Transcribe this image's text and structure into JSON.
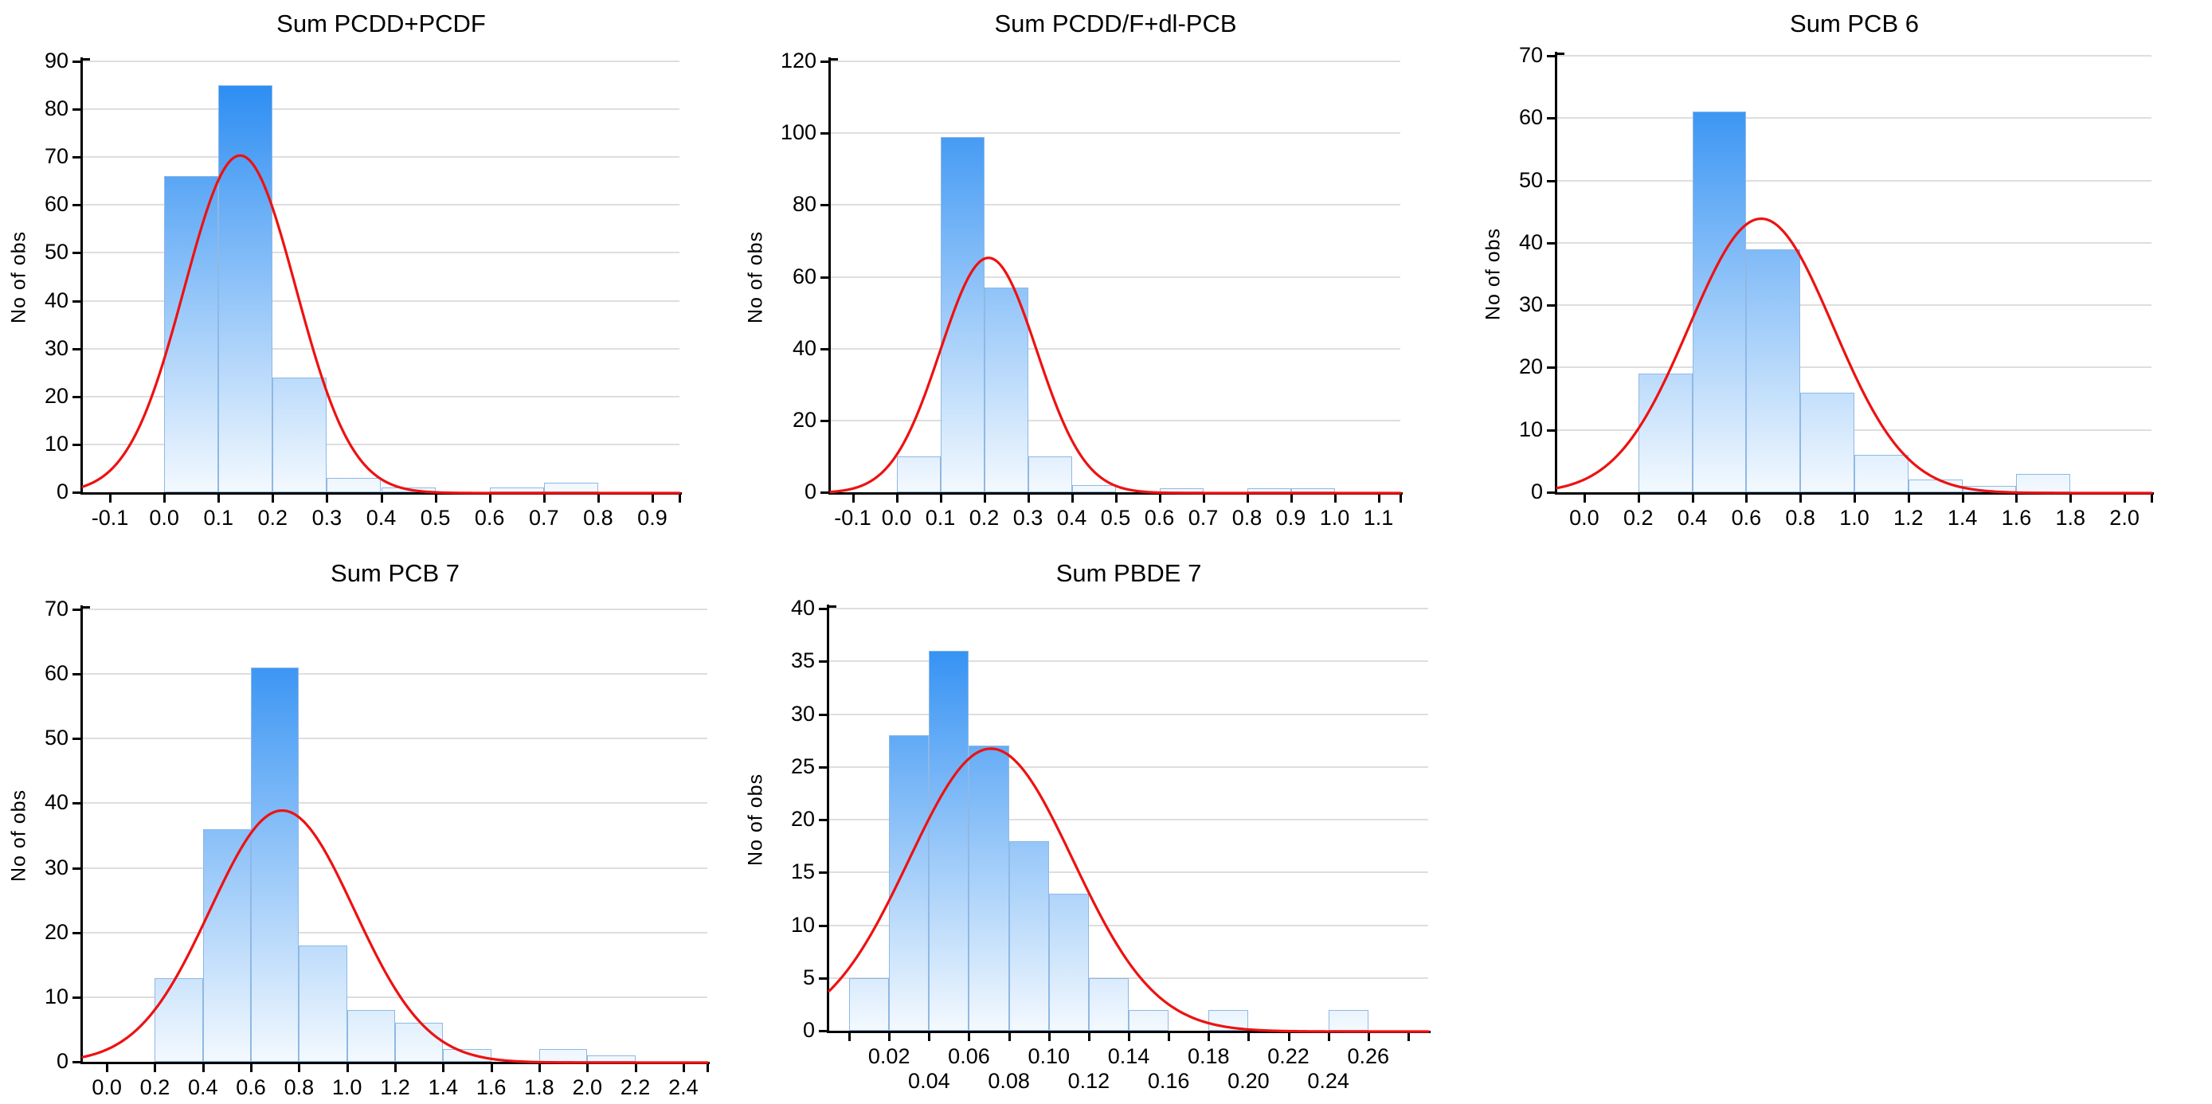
{
  "figure": {
    "background": "#ffffff",
    "colors": {
      "bar_top": "#2187f2",
      "bar_bottom": "#f3f9fe",
      "bar_border": "#8fb8e4",
      "curve": "#ee1111",
      "axis": "#000000",
      "grid": "#dedede",
      "text": "#000000"
    }
  },
  "chart_data": [
    {
      "type": "bar",
      "subtype": "histogram-with-normal-fit",
      "title": "Sum PCDD+PCDF",
      "ylabel": "No of obs",
      "xlabel": "",
      "grid": "horizontal",
      "legend": null,
      "ylim": [
        0,
        90
      ],
      "xlim": [
        -0.15,
        0.95
      ],
      "bin_width": 0.1,
      "y_ticks": [
        {
          "v": 0,
          "label": "0"
        },
        {
          "v": 10,
          "label": "10"
        },
        {
          "v": 20,
          "label": "20"
        },
        {
          "v": 30,
          "label": "30"
        },
        {
          "v": 40,
          "label": "40"
        },
        {
          "v": 50,
          "label": "50"
        },
        {
          "v": 60,
          "label": "60"
        },
        {
          "v": 70,
          "label": "70"
        },
        {
          "v": 80,
          "label": "80"
        },
        {
          "v": 90,
          "label": "90"
        }
      ],
      "x_ticks": [
        {
          "v": -0.1,
          "label": "-0.1"
        },
        {
          "v": 0.0,
          "label": "0.0"
        },
        {
          "v": 0.1,
          "label": "0.1"
        },
        {
          "v": 0.2,
          "label": "0.2"
        },
        {
          "v": 0.3,
          "label": "0.3"
        },
        {
          "v": 0.4,
          "label": "0.4"
        },
        {
          "v": 0.5,
          "label": "0.5"
        },
        {
          "v": 0.6,
          "label": "0.6"
        },
        {
          "v": 0.7,
          "label": "0.7"
        },
        {
          "v": 0.8,
          "label": "0.8"
        },
        {
          "v": 0.9,
          "label": "0.9"
        },
        {
          "v": 0.95,
          "label": ""
        }
      ],
      "bars": [
        {
          "bin_start": 0.0,
          "bin_end": 0.1,
          "count": 66
        },
        {
          "bin_start": 0.1,
          "bin_end": 0.2,
          "count": 85
        },
        {
          "bin_start": 0.2,
          "bin_end": 0.3,
          "count": 24
        },
        {
          "bin_start": 0.3,
          "bin_end": 0.4,
          "count": 3
        },
        {
          "bin_start": 0.4,
          "bin_end": 0.5,
          "count": 1
        },
        {
          "bin_start": 0.6,
          "bin_end": 0.7,
          "count": 1
        },
        {
          "bin_start": 0.7,
          "bin_end": 0.8,
          "count": 2
        }
      ],
      "curve": {
        "shape": "normal",
        "mean": 0.14,
        "sd": 0.103,
        "peak": 70.5
      }
    },
    {
      "type": "bar",
      "subtype": "histogram-with-normal-fit",
      "title": "Sum PCDD/F+dl-PCB",
      "ylabel": "No of obs",
      "xlabel": "",
      "grid": "horizontal",
      "legend": null,
      "ylim": [
        0,
        120
      ],
      "xlim": [
        -0.15,
        1.15
      ],
      "bin_width": 0.1,
      "y_ticks": [
        {
          "v": 0,
          "label": "0"
        },
        {
          "v": 20,
          "label": "20"
        },
        {
          "v": 40,
          "label": "40"
        },
        {
          "v": 60,
          "label": "60"
        },
        {
          "v": 80,
          "label": "80"
        },
        {
          "v": 100,
          "label": "100"
        },
        {
          "v": 120,
          "label": "120"
        }
      ],
      "x_ticks": [
        {
          "v": -0.1,
          "label": "-0.1"
        },
        {
          "v": 0.0,
          "label": "0.0"
        },
        {
          "v": 0.1,
          "label": "0.1"
        },
        {
          "v": 0.2,
          "label": "0.2"
        },
        {
          "v": 0.3,
          "label": "0.3"
        },
        {
          "v": 0.4,
          "label": "0.4"
        },
        {
          "v": 0.5,
          "label": "0.5"
        },
        {
          "v": 0.6,
          "label": "0.6"
        },
        {
          "v": 0.7,
          "label": "0.7"
        },
        {
          "v": 0.8,
          "label": "0.8"
        },
        {
          "v": 0.9,
          "label": "0.9"
        },
        {
          "v": 1.0,
          "label": "1.0"
        },
        {
          "v": 1.1,
          "label": "1.1"
        },
        {
          "v": 1.15,
          "label": ""
        }
      ],
      "bars": [
        {
          "bin_start": 0.0,
          "bin_end": 0.1,
          "count": 10
        },
        {
          "bin_start": 0.1,
          "bin_end": 0.2,
          "count": 99
        },
        {
          "bin_start": 0.2,
          "bin_end": 0.3,
          "count": 57
        },
        {
          "bin_start": 0.3,
          "bin_end": 0.4,
          "count": 10
        },
        {
          "bin_start": 0.4,
          "bin_end": 0.5,
          "count": 2
        },
        {
          "bin_start": 0.6,
          "bin_end": 0.7,
          "count": 1
        },
        {
          "bin_start": 0.8,
          "bin_end": 0.9,
          "count": 1
        },
        {
          "bin_start": 0.9,
          "bin_end": 1.0,
          "count": 1
        }
      ],
      "curve": {
        "shape": "normal",
        "mean": 0.21,
        "sd": 0.11,
        "peak": 65.5
      }
    },
    {
      "type": "bar",
      "subtype": "histogram-with-normal-fit",
      "title": "Sum PCB 6",
      "ylabel": "No of obs",
      "xlabel": "",
      "grid": "horizontal",
      "legend": null,
      "ylim": [
        0,
        70
      ],
      "xlim": [
        -0.1,
        2.1
      ],
      "bin_width": 0.2,
      "y_ticks": [
        {
          "v": 0,
          "label": "0"
        },
        {
          "v": 10,
          "label": "10"
        },
        {
          "v": 20,
          "label": "20"
        },
        {
          "v": 30,
          "label": "30"
        },
        {
          "v": 40,
          "label": "40"
        },
        {
          "v": 50,
          "label": "50"
        },
        {
          "v": 60,
          "label": "60"
        },
        {
          "v": 70,
          "label": "70"
        }
      ],
      "x_ticks": [
        {
          "v": 0.0,
          "label": "0.0"
        },
        {
          "v": 0.2,
          "label": "0.2"
        },
        {
          "v": 0.4,
          "label": "0.4"
        },
        {
          "v": 0.6,
          "label": "0.6"
        },
        {
          "v": 0.8,
          "label": "0.8"
        },
        {
          "v": 1.0,
          "label": "1.0"
        },
        {
          "v": 1.2,
          "label": "1.2"
        },
        {
          "v": 1.4,
          "label": "1.4"
        },
        {
          "v": 1.6,
          "label": "1.6"
        },
        {
          "v": 1.8,
          "label": "1.8"
        },
        {
          "v": 2.0,
          "label": "2.0"
        },
        {
          "v": 2.1,
          "label": ""
        }
      ],
      "bars": [
        {
          "bin_start": 0.2,
          "bin_end": 0.4,
          "count": 19
        },
        {
          "bin_start": 0.4,
          "bin_end": 0.6,
          "count": 61
        },
        {
          "bin_start": 0.6,
          "bin_end": 0.8,
          "count": 39
        },
        {
          "bin_start": 0.8,
          "bin_end": 1.0,
          "count": 16
        },
        {
          "bin_start": 1.0,
          "bin_end": 1.2,
          "count": 6
        },
        {
          "bin_start": 1.2,
          "bin_end": 1.4,
          "count": 2
        },
        {
          "bin_start": 1.4,
          "bin_end": 1.6,
          "count": 1
        },
        {
          "bin_start": 1.6,
          "bin_end": 1.8,
          "count": 3
        }
      ],
      "curve": {
        "shape": "normal",
        "mean": 0.655,
        "sd": 0.267,
        "peak": 44
      }
    },
    {
      "type": "bar",
      "subtype": "histogram-with-normal-fit",
      "title": "Sum PCB 7",
      "ylabel": "No of obs",
      "xlabel": "",
      "grid": "horizontal",
      "legend": null,
      "ylim": [
        0,
        70
      ],
      "xlim": [
        -0.1,
        2.5
      ],
      "bin_width": 0.2,
      "y_ticks": [
        {
          "v": 0,
          "label": "0"
        },
        {
          "v": 10,
          "label": "10"
        },
        {
          "v": 20,
          "label": "20"
        },
        {
          "v": 30,
          "label": "30"
        },
        {
          "v": 40,
          "label": "40"
        },
        {
          "v": 50,
          "label": "50"
        },
        {
          "v": 60,
          "label": "60"
        },
        {
          "v": 70,
          "label": "70"
        }
      ],
      "x_ticks": [
        {
          "v": 0.0,
          "label": "0.0"
        },
        {
          "v": 0.2,
          "label": "0.2"
        },
        {
          "v": 0.4,
          "label": "0.4"
        },
        {
          "v": 0.6,
          "label": "0.6"
        },
        {
          "v": 0.8,
          "label": "0.8"
        },
        {
          "v": 1.0,
          "label": "1.0"
        },
        {
          "v": 1.2,
          "label": "1.2"
        },
        {
          "v": 1.4,
          "label": "1.4"
        },
        {
          "v": 1.6,
          "label": "1.6"
        },
        {
          "v": 1.8,
          "label": "1.8"
        },
        {
          "v": 2.0,
          "label": "2.0"
        },
        {
          "v": 2.2,
          "label": "2.2"
        },
        {
          "v": 2.4,
          "label": "2.4"
        },
        {
          "v": 2.5,
          "label": ""
        }
      ],
      "bars": [
        {
          "bin_start": 0.2,
          "bin_end": 0.4,
          "count": 13
        },
        {
          "bin_start": 0.4,
          "bin_end": 0.6,
          "count": 36
        },
        {
          "bin_start": 0.6,
          "bin_end": 0.8,
          "count": 61
        },
        {
          "bin_start": 0.8,
          "bin_end": 1.0,
          "count": 18
        },
        {
          "bin_start": 1.0,
          "bin_end": 1.2,
          "count": 8
        },
        {
          "bin_start": 1.2,
          "bin_end": 1.4,
          "count": 6
        },
        {
          "bin_start": 1.4,
          "bin_end": 1.6,
          "count": 2
        },
        {
          "bin_start": 1.8,
          "bin_end": 2.0,
          "count": 2
        },
        {
          "bin_start": 2.0,
          "bin_end": 2.2,
          "count": 1
        }
      ],
      "curve": {
        "shape": "normal",
        "mean": 0.73,
        "sd": 0.3,
        "peak": 39
      }
    },
    {
      "type": "bar",
      "subtype": "histogram-with-normal-fit",
      "title": "Sum PBDE 7",
      "ylabel": "No of obs",
      "xlabel": "",
      "grid": "horizontal",
      "legend": null,
      "ylim": [
        0,
        40
      ],
      "xlim": [
        -0.01,
        0.29
      ],
      "bin_width": 0.02,
      "y_ticks": [
        {
          "v": 0,
          "label": "0"
        },
        {
          "v": 5,
          "label": "5"
        },
        {
          "v": 10,
          "label": "10"
        },
        {
          "v": 15,
          "label": "15"
        },
        {
          "v": 20,
          "label": "20"
        },
        {
          "v": 25,
          "label": "25"
        },
        {
          "v": 30,
          "label": "30"
        },
        {
          "v": 35,
          "label": "35"
        },
        {
          "v": 40,
          "label": "40"
        }
      ],
      "x_ticks": [
        {
          "v": 0.0,
          "label": ""
        },
        {
          "v": 0.02,
          "label": "0.02",
          "row": 1
        },
        {
          "v": 0.04,
          "label": "0.04",
          "row": 2
        },
        {
          "v": 0.06,
          "label": "0.06",
          "row": 1
        },
        {
          "v": 0.08,
          "label": "0.08",
          "row": 2
        },
        {
          "v": 0.1,
          "label": "0.10",
          "row": 1
        },
        {
          "v": 0.12,
          "label": "0.12",
          "row": 2
        },
        {
          "v": 0.14,
          "label": "0.14",
          "row": 1
        },
        {
          "v": 0.16,
          "label": "0.16",
          "row": 2
        },
        {
          "v": 0.18,
          "label": "0.18",
          "row": 1
        },
        {
          "v": 0.2,
          "label": "0.20",
          "row": 2
        },
        {
          "v": 0.22,
          "label": "0.22",
          "row": 1
        },
        {
          "v": 0.24,
          "label": "0.24",
          "row": 2
        },
        {
          "v": 0.26,
          "label": "0.26",
          "row": 1
        },
        {
          "v": 0.28,
          "label": ""
        }
      ],
      "bars": [
        {
          "bin_start": 0.0,
          "bin_end": 0.02,
          "count": 5
        },
        {
          "bin_start": 0.02,
          "bin_end": 0.04,
          "count": 28
        },
        {
          "bin_start": 0.04,
          "bin_end": 0.06,
          "count": 36
        },
        {
          "bin_start": 0.06,
          "bin_end": 0.08,
          "count": 27
        },
        {
          "bin_start": 0.08,
          "bin_end": 0.1,
          "count": 18
        },
        {
          "bin_start": 0.1,
          "bin_end": 0.12,
          "count": 13
        },
        {
          "bin_start": 0.12,
          "bin_end": 0.14,
          "count": 5
        },
        {
          "bin_start": 0.14,
          "bin_end": 0.16,
          "count": 2
        },
        {
          "bin_start": 0.18,
          "bin_end": 0.2,
          "count": 2
        },
        {
          "bin_start": 0.24,
          "bin_end": 0.26,
          "count": 2
        }
      ],
      "curve": {
        "shape": "normal",
        "mean": 0.071,
        "sd": 0.0411,
        "peak": 26.8
      }
    }
  ]
}
